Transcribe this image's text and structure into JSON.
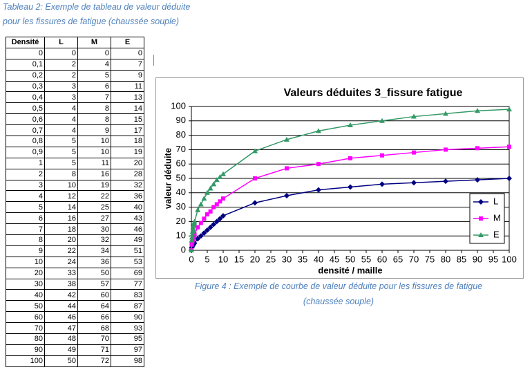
{
  "caption": {
    "line1": "Tableau 2: Exemple de tableau de valeur déduite",
    "line2": "pour les fissures de fatigue (chaussée souple)"
  },
  "table": {
    "header": [
      "Densité",
      "L",
      "M",
      "E"
    ],
    "rows": [
      [
        "0",
        0,
        0,
        0
      ],
      [
        "0,1",
        2,
        4,
        7
      ],
      [
        "0,2",
        2,
        5,
        9
      ],
      [
        "0,3",
        3,
        6,
        11
      ],
      [
        "0,4",
        3,
        7,
        13
      ],
      [
        "0,5",
        4,
        8,
        14
      ],
      [
        "0,6",
        4,
        8,
        15
      ],
      [
        "0,7",
        4,
        9,
        17
      ],
      [
        "0,8",
        5,
        10,
        18
      ],
      [
        "0,9",
        5,
        10,
        19
      ],
      [
        "1",
        5,
        11,
        20
      ],
      [
        "2",
        8,
        16,
        28
      ],
      [
        "3",
        10,
        19,
        32
      ],
      [
        "4",
        12,
        22,
        36
      ],
      [
        "5",
        14,
        25,
        40
      ],
      [
        "6",
        16,
        27,
        43
      ],
      [
        "7",
        18,
        30,
        46
      ],
      [
        "8",
        20,
        32,
        49
      ],
      [
        "9",
        22,
        34,
        51
      ],
      [
        "10",
        24,
        36,
        53
      ],
      [
        "20",
        33,
        50,
        69
      ],
      [
        "30",
        38,
        57,
        77
      ],
      [
        "40",
        42,
        60,
        83
      ],
      [
        "50",
        44,
        64,
        87
      ],
      [
        "60",
        46,
        66,
        90
      ],
      [
        "70",
        47,
        68,
        93
      ],
      [
        "80",
        48,
        70,
        95
      ],
      [
        "90",
        49,
        71,
        97
      ],
      [
        "100",
        50,
        72,
        98
      ]
    ]
  },
  "chart_data": {
    "type": "line",
    "title": "Valeurs déduites 3_fissure fatigue",
    "x_label": "densité / maille",
    "y_label": "valeur déduite",
    "x": [
      0,
      0.1,
      0.2,
      0.3,
      0.4,
      0.5,
      0.6,
      0.7,
      0.8,
      0.9,
      1,
      2,
      3,
      4,
      5,
      6,
      7,
      8,
      9,
      10,
      20,
      30,
      40,
      50,
      60,
      70,
      80,
      90,
      100
    ],
    "series": [
      {
        "name": "L",
        "color": "#000080",
        "marker": "diamond",
        "values": [
          0,
          2,
          2,
          3,
          3,
          4,
          4,
          4,
          5,
          5,
          5,
          8,
          10,
          12,
          14,
          16,
          18,
          20,
          22,
          24,
          33,
          38,
          42,
          44,
          46,
          47,
          48,
          49,
          50
        ]
      },
      {
        "name": "M",
        "color": "#ff00ff",
        "marker": "square",
        "values": [
          0,
          4,
          5,
          6,
          7,
          8,
          8,
          9,
          10,
          10,
          11,
          16,
          19,
          22,
          25,
          27,
          30,
          32,
          34,
          36,
          50,
          57,
          60,
          64,
          66,
          68,
          70,
          71,
          72
        ]
      },
      {
        "name": "E",
        "color": "#339966",
        "marker": "triangle",
        "values": [
          0,
          7,
          9,
          11,
          13,
          14,
          15,
          17,
          18,
          19,
          20,
          28,
          32,
          36,
          40,
          43,
          46,
          49,
          51,
          53,
          69,
          77,
          83,
          87,
          90,
          93,
          95,
          97,
          98
        ]
      }
    ],
    "xlim": [
      0,
      100
    ],
    "xticks": [
      0,
      5,
      10,
      15,
      20,
      25,
      30,
      35,
      40,
      45,
      50,
      55,
      60,
      65,
      70,
      75,
      80,
      85,
      90,
      95,
      100
    ],
    "ylim": [
      0,
      100
    ],
    "yticks": [
      0,
      10,
      20,
      30,
      40,
      50,
      60,
      70,
      80,
      90,
      100
    ],
    "grid": true,
    "legend": "right"
  },
  "figure_caption": {
    "line1": "Figure 4 : Exemple de courbe de valeur déduite pour les fissures de fatigue",
    "line2": "(chaussée souple)"
  }
}
